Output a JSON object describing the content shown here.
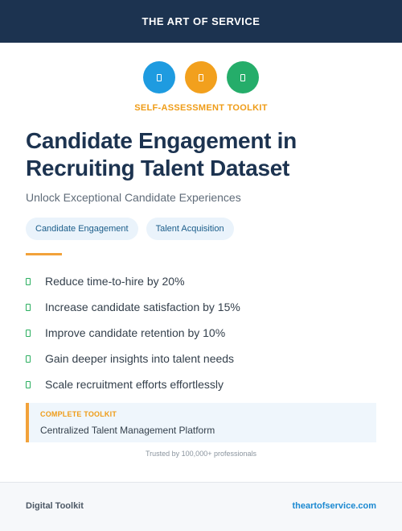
{
  "header": {
    "brand_title": "THE ART OF SERVICE"
  },
  "icons": [
    {
      "name": "document-icon",
      "color": "#1e9be0"
    },
    {
      "name": "document-icon",
      "color": "#f2a01d"
    },
    {
      "name": "document-icon",
      "color": "#25ad6a"
    }
  ],
  "hero": {
    "eyebrow": "SELF-ASSESSMENT TOOLKIT",
    "title": "Candidate Engagement in Recruiting Talent Dataset",
    "subtitle": "Unlock Exceptional Candidate Experiences"
  },
  "tags": [
    "Candidate Engagement",
    "Talent Acquisition"
  ],
  "benefits": [
    "Reduce time-to-hire by 20%",
    "Increase candidate satisfaction by 15%",
    "Improve candidate retention by 10%",
    "Gain deeper insights into talent needs",
    "Scale recruitment efforts effortlessly"
  ],
  "callout": {
    "label": "COMPLETE TOOLKIT",
    "text": "Centralized Talent Management Platform"
  },
  "trusted": "Trusted by 100,000+ professionals",
  "footer": {
    "left": "Digital Toolkit",
    "link": "theartofservice.com"
  },
  "colors": {
    "navy": "#1c3350",
    "orange": "#f2a23a",
    "green": "#2aae5f",
    "blue": "#1b89d1"
  }
}
